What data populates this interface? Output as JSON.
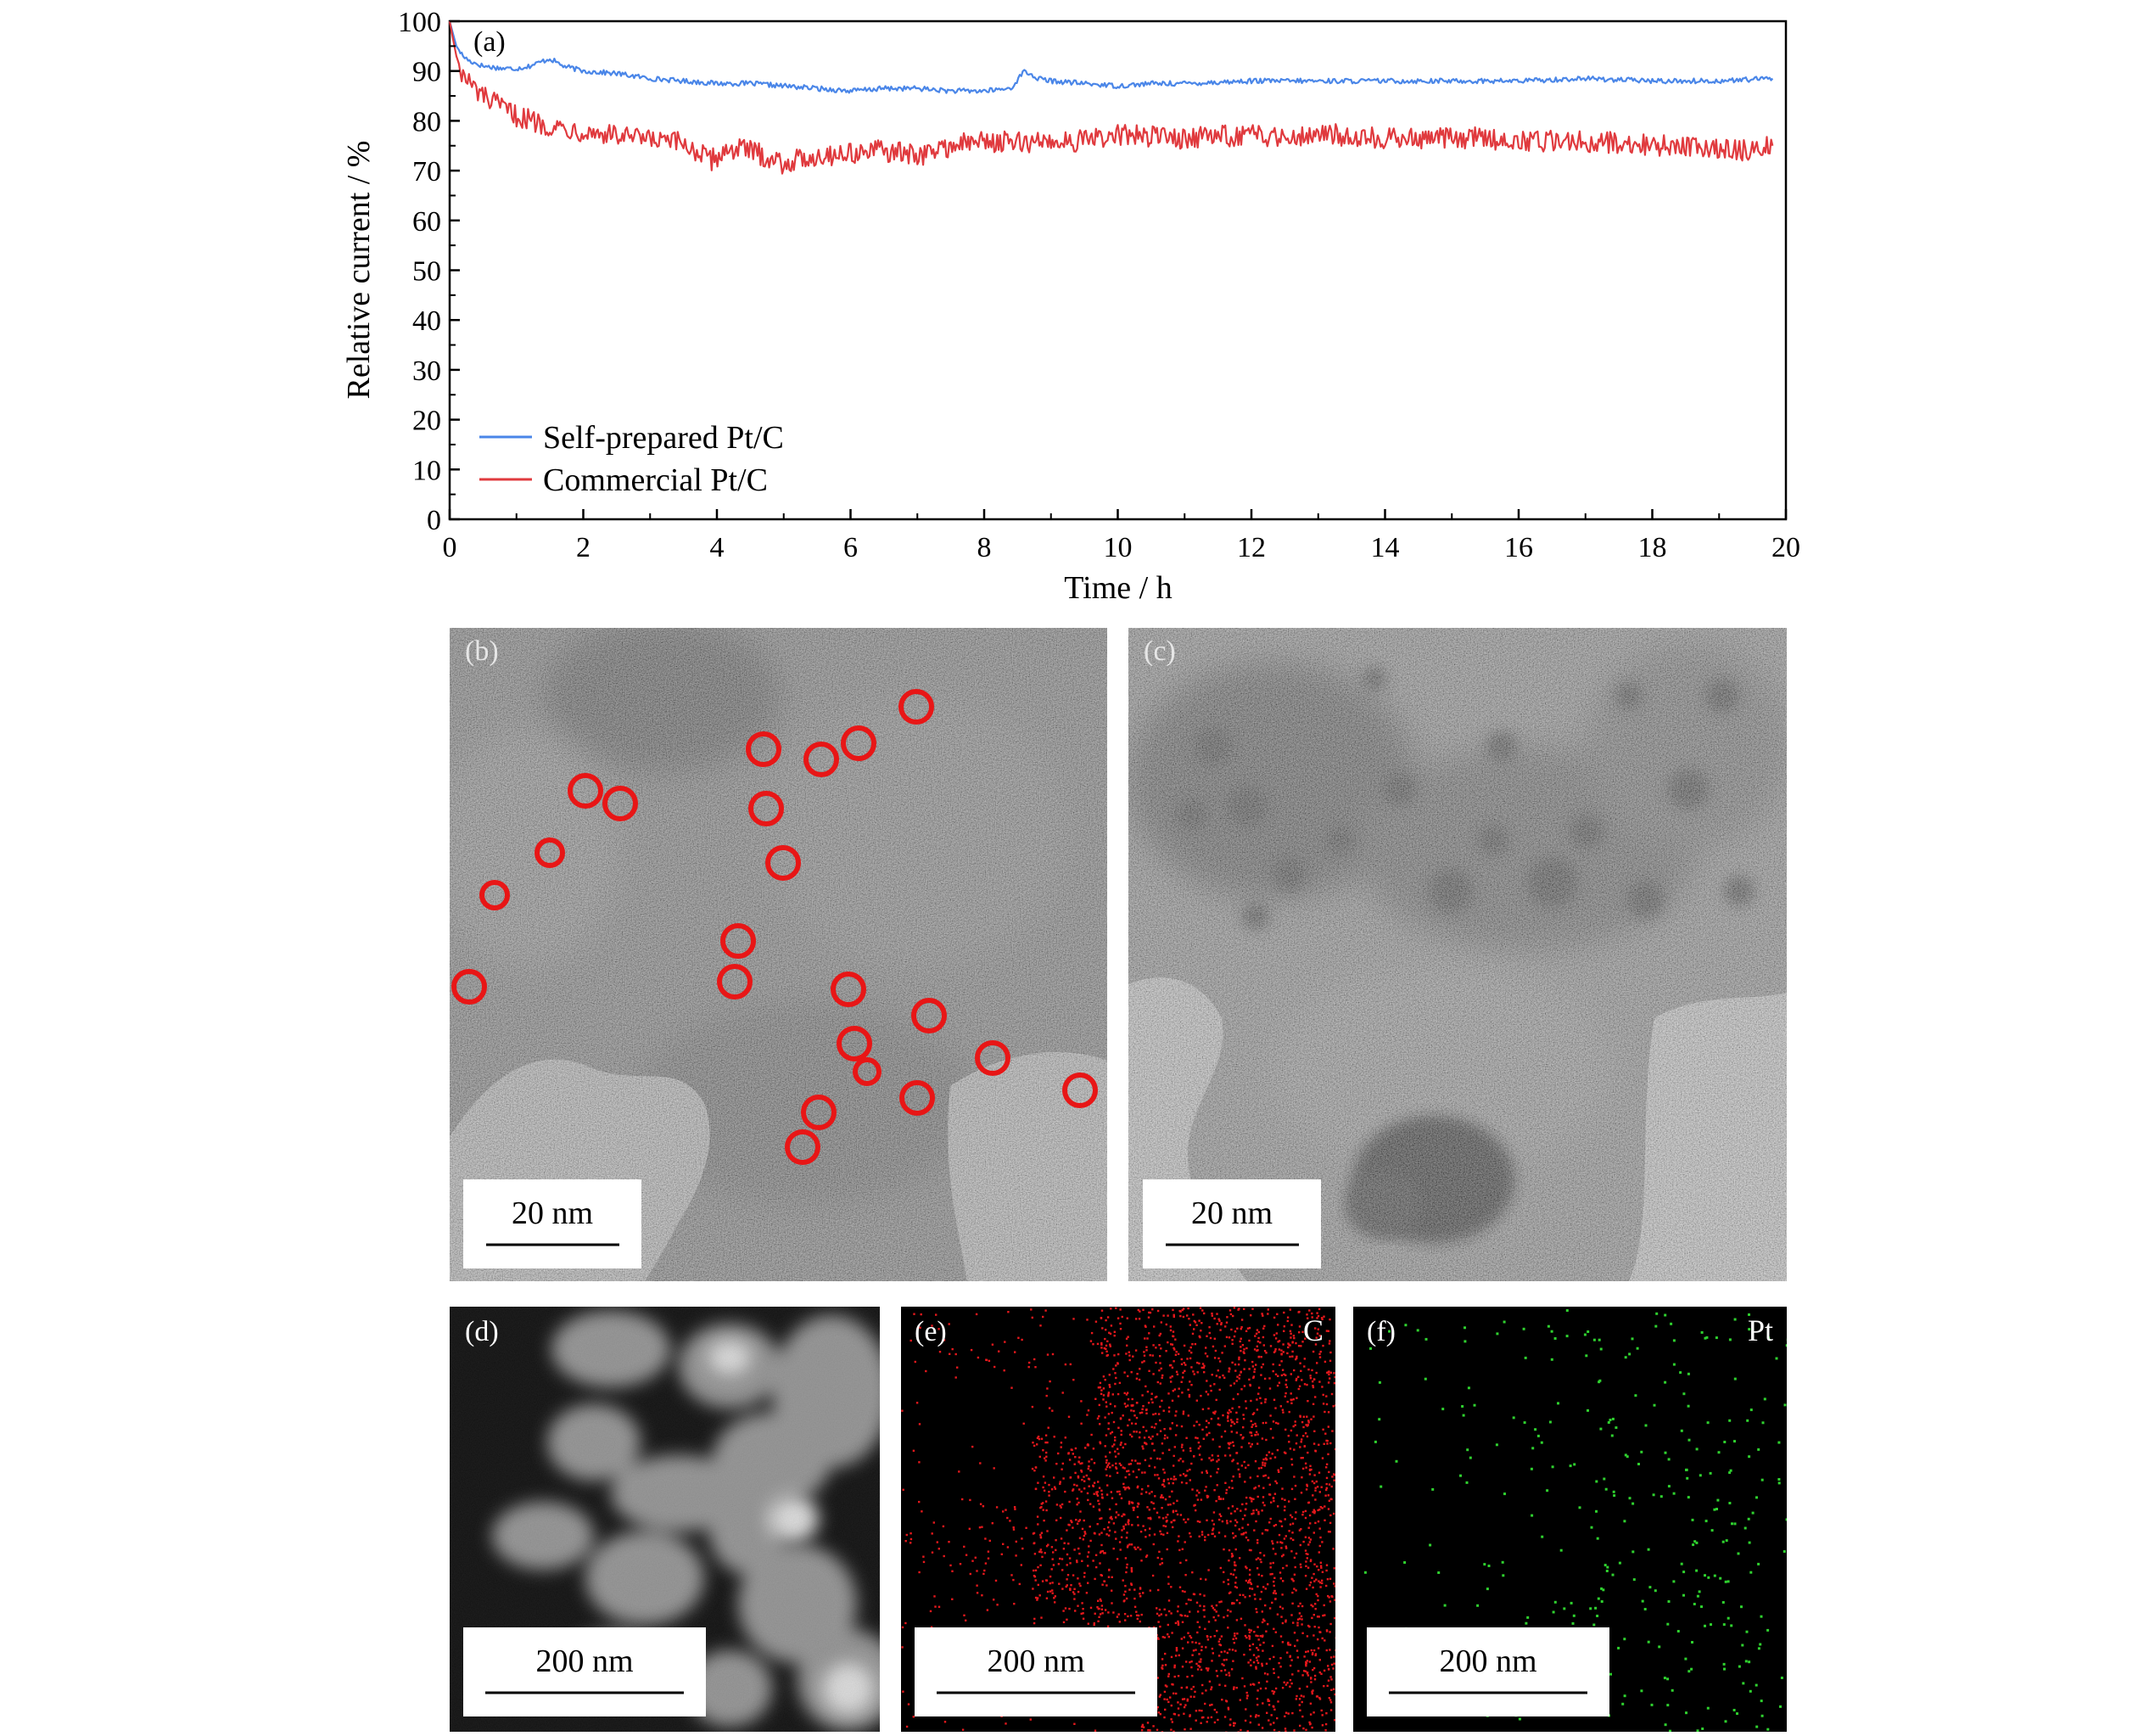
{
  "chart_data": {
    "type": "line",
    "panel_label": "(a)",
    "xlabel": "Time / h",
    "ylabel": "Relative current / %",
    "xlim": [
      0,
      20
    ],
    "ylim": [
      0,
      100
    ],
    "xticks": [
      0,
      2,
      4,
      6,
      8,
      10,
      12,
      14,
      16,
      18,
      20
    ],
    "yticks": [
      0,
      10,
      20,
      30,
      40,
      50,
      60,
      70,
      80,
      90,
      100
    ],
    "grid": false,
    "legend_position": "bottom-left",
    "series": [
      {
        "name": "Self-prepared Pt/C",
        "color": "#4a86e8",
        "x": [
          0,
          0.1,
          0.2,
          0.3,
          0.5,
          0.8,
          1.0,
          1.2,
          1.4,
          1.5,
          1.7,
          2.0,
          2.5,
          3.0,
          3.5,
          4.0,
          4.5,
          5.0,
          5.5,
          6.0,
          6.5,
          7.0,
          7.5,
          8.0,
          8.4,
          8.6,
          8.8,
          9.0,
          9.5,
          10.0,
          10.5,
          11.0,
          12.0,
          13.0,
          14.0,
          15.0,
          16.0,
          17.0,
          18.0,
          19.0,
          19.8
        ],
        "y": [
          100,
          95,
          93,
          92,
          91,
          90.5,
          90.5,
          91,
          92,
          92.5,
          91,
          90,
          89.5,
          88.5,
          88,
          87.5,
          87.5,
          87,
          86.5,
          86,
          86.5,
          86.5,
          86,
          86,
          86.5,
          90,
          88.5,
          88,
          87.5,
          87,
          87.5,
          87.5,
          88,
          88,
          88,
          88,
          88,
          88.5,
          88,
          88,
          88.5
        ]
      },
      {
        "name": "Commercial Pt/C",
        "color": "#e03a3e",
        "x": [
          0,
          0.1,
          0.2,
          0.4,
          0.6,
          0.8,
          1.0,
          1.5,
          2.0,
          2.5,
          3.0,
          3.5,
          3.9,
          4.2,
          4.5,
          5.0,
          5.5,
          6.0,
          6.5,
          7.0,
          7.5,
          8.0,
          8.5,
          9.0,
          9.5,
          10.0,
          10.5,
          11.0,
          11.5,
          12.0,
          12.5,
          13.0,
          13.5,
          14.0,
          14.5,
          15.0,
          15.5,
          16.0,
          16.5,
          17.0,
          17.5,
          18.0,
          18.5,
          19.0,
          19.5,
          19.8
        ],
        "y": [
          100,
          93,
          89,
          86,
          84,
          82.5,
          81,
          79,
          78,
          77,
          76,
          75.5,
          72,
          74.5,
          74,
          71.5,
          73,
          73.5,
          74,
          73,
          75,
          76,
          75.5,
          76,
          76,
          77,
          77,
          76.5,
          77,
          77,
          77,
          77.5,
          77,
          76.5,
          76.5,
          76.5,
          76.5,
          76,
          76,
          76,
          75.5,
          75,
          75,
          74.5,
          74,
          75
        ]
      }
    ]
  },
  "tem_panels": [
    {
      "label": "(b)",
      "scale": "20 nm"
    },
    {
      "label": "(c)",
      "scale": "20 nm"
    }
  ],
  "map_panels": [
    {
      "label": "(d)",
      "element": "",
      "scale": "200 nm",
      "color": "#e8e8e8"
    },
    {
      "label": "(e)",
      "element": "C",
      "scale": "200 nm",
      "color": "#e5181c"
    },
    {
      "label": "(f)",
      "element": "Pt",
      "scale": "200 nm",
      "color": "#2fd12f"
    }
  ]
}
